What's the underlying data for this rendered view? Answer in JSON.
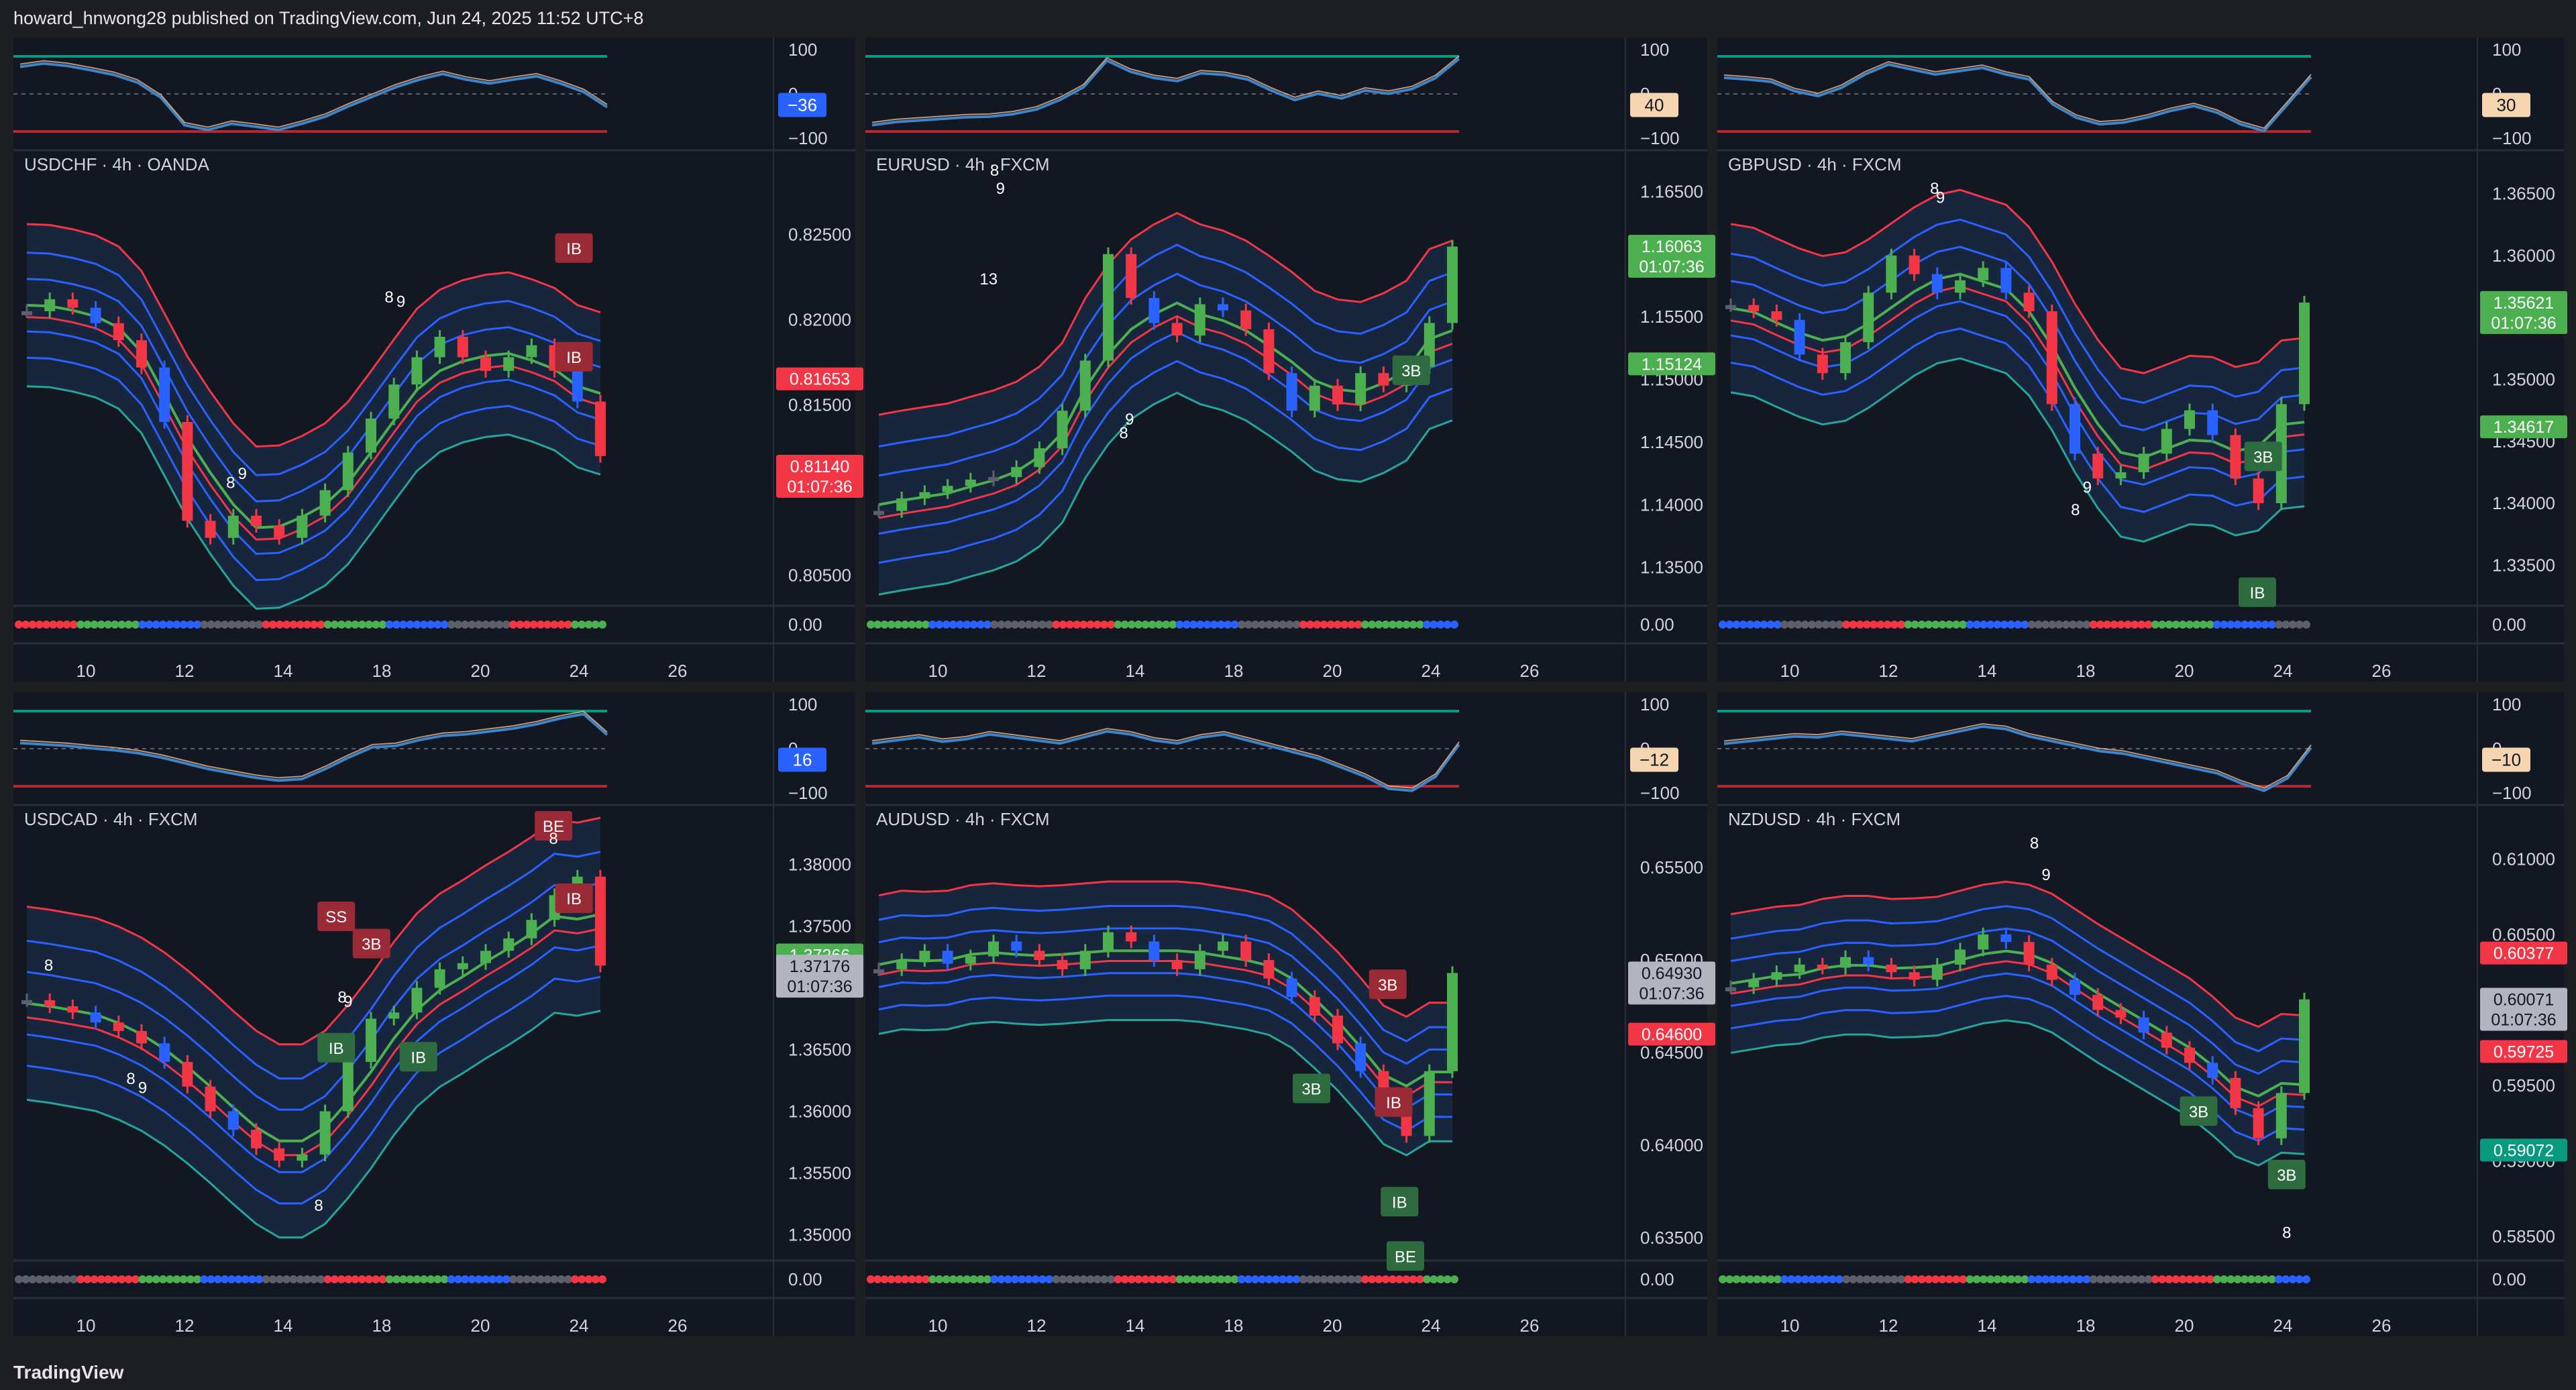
{
  "header": {
    "publisher_text": "howard_hnwong28 published on TradingView.com, Jun 24, 2025 11:52 UTC+8"
  },
  "footer": {
    "brand": "TradingView"
  },
  "colors": {
    "background": "#131722",
    "chrome": "#1e1f22",
    "up": "#4caf50",
    "down": "#f23645",
    "blue_bar": "#2962ff",
    "neutral_bar": "#5d606b",
    "basis": "#4caf50",
    "outer_red": "#f23645",
    "band_blue": "#2962ff",
    "osc_line": "#3d85c6",
    "osc_line2": "#e8b78e"
  },
  "chart_data": [
    {
      "type": "line",
      "title": "USDCHF · 4h · OANDA",
      "x_ticks": [
        "10",
        "12",
        "14",
        "18",
        "20",
        "24",
        "26"
      ],
      "price_ticks": [
        "0.82500",
        "0.82000",
        "0.81500",
        "0.80500"
      ],
      "ylim": [
        0.804,
        0.829
      ],
      "price_labels": [
        {
          "value": "0.81653",
          "color": "#f23645"
        },
        {
          "value": "0.81140",
          "sub": "01:07:36",
          "color": "#f23645"
        }
      ],
      "osc_ticks": [
        "100",
        "0",
        "−100"
      ],
      "osc_value": {
        "value": "−36",
        "color": "#2962ff"
      },
      "dots_value": "0.00",
      "close_series": [
        0.8205,
        0.8212,
        0.8207,
        0.8198,
        0.8188,
        0.8172,
        0.814,
        0.8082,
        0.8072,
        0.8085,
        0.8079,
        0.8072,
        0.8085,
        0.81,
        0.8122,
        0.8142,
        0.8162,
        0.8178,
        0.819,
        0.8178,
        0.817,
        0.8178,
        0.8185,
        0.817,
        0.8152,
        0.812
      ],
      "markers": [
        {
          "text": "IB",
          "kind": "down"
        },
        {
          "text": "IB",
          "kind": "down"
        },
        {
          "text": "8",
          "kind": "plain"
        },
        {
          "text": "9",
          "kind": "plain"
        },
        {
          "text": "8",
          "kind": "plain"
        },
        {
          "text": "9",
          "kind": "plain"
        }
      ]
    },
    {
      "type": "line",
      "title": "EURUSD · 4h · FXCM",
      "x_ticks": [
        "10",
        "12",
        "14",
        "18",
        "20",
        "24",
        "26"
      ],
      "price_ticks": [
        "1.16500",
        "1.16000",
        "1.15500",
        "1.15000",
        "1.14500",
        "1.14000",
        "1.13500"
      ],
      "ylim": [
        1.133,
        1.167
      ],
      "price_labels": [
        {
          "value": "1.16063",
          "sub": "01:07:36",
          "color": "#4caf50"
        },
        {
          "value": "1.15124",
          "color": "#4caf50"
        }
      ],
      "osc_ticks": [
        "100",
        "0",
        "−100"
      ],
      "osc_value": {
        "value": "40",
        "color": "#f5d4b0"
      },
      "dots_value": "0.00",
      "close_series": [
        1.1395,
        1.1405,
        1.141,
        1.1415,
        1.142,
        1.1422,
        1.143,
        1.1445,
        1.1475,
        1.1515,
        1.16,
        1.1565,
        1.1545,
        1.1535,
        1.156,
        1.1555,
        1.154,
        1.1505,
        1.1475,
        1.1495,
        1.148,
        1.1505,
        1.1495,
        1.151,
        1.1545,
        1.1606
      ],
      "markers": [
        {
          "text": "8",
          "kind": "plain"
        },
        {
          "text": "9",
          "kind": "plain"
        },
        {
          "text": "13",
          "kind": "plain"
        },
        {
          "text": "9",
          "kind": "plain"
        },
        {
          "text": "8",
          "kind": "plain"
        },
        {
          "text": "3B",
          "kind": "up"
        }
      ]
    },
    {
      "type": "line",
      "title": "GBPUSD · 4h · FXCM",
      "x_ticks": [
        "10",
        "12",
        "14",
        "18",
        "20",
        "24",
        "26"
      ],
      "price_ticks": [
        "1.36500",
        "1.36000",
        "1.35500",
        "1.35000",
        "1.34500",
        "1.34000",
        "1.33500"
      ],
      "ylim": [
        1.3328,
        1.3672
      ],
      "price_labels": [
        {
          "value": "1.35621",
          "sub": "01:07:36",
          "color": "#4caf50"
        },
        {
          "value": "1.34617",
          "color": "#4caf50"
        }
      ],
      "osc_ticks": [
        "100",
        "0",
        "−100"
      ],
      "osc_value": {
        "value": "30",
        "color": "#f5d4b0"
      },
      "dots_value": "0.00",
      "close_series": [
        1.356,
        1.3555,
        1.3548,
        1.352,
        1.3505,
        1.353,
        1.357,
        1.36,
        1.3585,
        1.357,
        1.358,
        1.359,
        1.357,
        1.3555,
        1.348,
        1.344,
        1.342,
        1.3425,
        1.344,
        1.346,
        1.3475,
        1.3455,
        1.342,
        1.34,
        1.348,
        1.3562
      ],
      "markers": [
        {
          "text": "8",
          "kind": "plain"
        },
        {
          "text": "9",
          "kind": "plain"
        },
        {
          "text": "9",
          "kind": "plain"
        },
        {
          "text": "8",
          "kind": "plain"
        },
        {
          "text": "3B",
          "kind": "up"
        },
        {
          "text": "IB",
          "kind": "up"
        }
      ]
    },
    {
      "type": "line",
      "title": "USDCAD · 4h · FXCM",
      "x_ticks": [
        "10",
        "12",
        "14",
        "18",
        "20",
        "24",
        "26"
      ],
      "price_ticks": [
        "1.38000",
        "1.37500",
        "1.37000",
        "1.36500",
        "1.36000",
        "1.35500",
        "1.35000"
      ],
      "ylim": [
        1.349,
        1.3835
      ],
      "price_labels": [
        {
          "value": "1.37266",
          "color": "#4caf50"
        },
        {
          "value": "1.37176",
          "sub": "01:07:36",
          "color": "#b2b5be"
        }
      ],
      "osc_ticks": [
        "100",
        "0",
        "−100"
      ],
      "osc_value": {
        "value": "16",
        "color": "#2962ff"
      },
      "dots_value": "0.00",
      "close_series": [
        1.369,
        1.3685,
        1.368,
        1.3672,
        1.3665,
        1.3655,
        1.364,
        1.362,
        1.36,
        1.3585,
        1.357,
        1.356,
        1.3565,
        1.36,
        1.364,
        1.3675,
        1.368,
        1.37,
        1.3715,
        1.372,
        1.373,
        1.374,
        1.3755,
        1.3775,
        1.379,
        1.3718
      ],
      "markers": [
        {
          "text": "8",
          "kind": "plain"
        },
        {
          "text": "8",
          "kind": "plain"
        },
        {
          "text": "9",
          "kind": "plain"
        },
        {
          "text": "8",
          "kind": "plain"
        },
        {
          "text": "IB",
          "kind": "up"
        },
        {
          "text": "IB",
          "kind": "up"
        },
        {
          "text": "SS",
          "kind": "down"
        },
        {
          "text": "3B",
          "kind": "down"
        },
        {
          "text": "8",
          "kind": "plain"
        },
        {
          "text": "9",
          "kind": "plain"
        },
        {
          "text": "BE",
          "kind": "down"
        },
        {
          "text": "8",
          "kind": "plain"
        },
        {
          "text": "IB",
          "kind": "down"
        }
      ]
    },
    {
      "type": "line",
      "title": "AUDUSD · 4h · FXCM",
      "x_ticks": [
        "10",
        "12",
        "14",
        "18",
        "20",
        "24",
        "26"
      ],
      "price_ticks": [
        "0.65500",
        "0.65000",
        "0.64500",
        "0.64000",
        "0.63500"
      ],
      "ylim": [
        0.6345,
        0.6575
      ],
      "price_labels": [
        {
          "value": "0.64930",
          "sub": "01:07:36",
          "color": "#b2b5be"
        },
        {
          "value": "0.64600",
          "color": "#f23645"
        }
      ],
      "osc_ticks": [
        "100",
        "0",
        "−100"
      ],
      "osc_value": {
        "value": "−12",
        "color": "#f5d4b0"
      },
      "dots_value": "0.00",
      "close_series": [
        0.6495,
        0.65,
        0.6505,
        0.6498,
        0.6502,
        0.651,
        0.6505,
        0.65,
        0.6495,
        0.6505,
        0.6515,
        0.651,
        0.65,
        0.6495,
        0.6505,
        0.651,
        0.65,
        0.649,
        0.648,
        0.647,
        0.6455,
        0.644,
        0.642,
        0.6405,
        0.644,
        0.6493
      ],
      "markers": [
        {
          "text": "3B",
          "kind": "down"
        },
        {
          "text": "3B",
          "kind": "up"
        },
        {
          "text": "IB",
          "kind": "down"
        },
        {
          "text": "IB",
          "kind": "up"
        },
        {
          "text": "BE",
          "kind": "up"
        }
      ]
    },
    {
      "type": "line",
      "title": "NZDUSD · 4h · FXCM",
      "x_ticks": [
        "10",
        "12",
        "14",
        "18",
        "20",
        "24",
        "26"
      ],
      "price_ticks": [
        "0.61000",
        "0.60500",
        "0.60000",
        "0.59500",
        "0.59000",
        "0.58500"
      ],
      "ylim": [
        0.5843,
        0.6125
      ],
      "price_labels": [
        {
          "value": "0.60377",
          "color": "#f23645"
        },
        {
          "value": "0.60071",
          "sub": "01:07:36",
          "color": "#b2b5be"
        },
        {
          "value": "0.59725",
          "color": "#f23645"
        },
        {
          "value": "0.59072",
          "color": "#089981"
        }
      ],
      "osc_ticks": [
        "100",
        "0",
        "−100"
      ],
      "osc_value": {
        "value": "−10",
        "color": "#f5d4b0"
      },
      "dots_value": "0.00",
      "close_series": [
        0.6015,
        0.602,
        0.6025,
        0.603,
        0.6028,
        0.6035,
        0.603,
        0.6025,
        0.602,
        0.603,
        0.604,
        0.605,
        0.6045,
        0.603,
        0.602,
        0.601,
        0.6,
        0.5995,
        0.5985,
        0.5975,
        0.5965,
        0.5955,
        0.5935,
        0.5915,
        0.5945,
        0.6007
      ],
      "markers": [
        {
          "text": "8",
          "kind": "plain"
        },
        {
          "text": "9",
          "kind": "plain"
        },
        {
          "text": "3B",
          "kind": "up"
        },
        {
          "text": "3B",
          "kind": "up"
        },
        {
          "text": "8",
          "kind": "plain"
        }
      ]
    }
  ]
}
